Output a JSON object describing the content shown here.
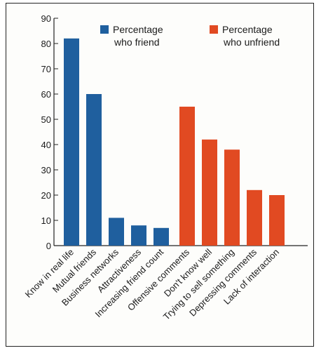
{
  "chart_data": {
    "type": "bar",
    "ylim": [
      0,
      90
    ],
    "yticks": [
      0,
      10,
      20,
      30,
      40,
      50,
      60,
      70,
      80,
      90
    ],
    "grid": false,
    "series": [
      {
        "name": "Percentage who friend",
        "legend_lines": [
          "Percentage",
          "who friend"
        ],
        "color": "#1f5f9e",
        "categories": [
          "Know in real life",
          "Mutual friends",
          "Business networks",
          "Attractiveness",
          "Increasing friend count"
        ],
        "values": [
          82,
          60,
          11,
          8,
          7
        ]
      },
      {
        "name": "Percentage who unfriend",
        "legend_lines": [
          "Percentage",
          "who unfriend"
        ],
        "color": "#e14a22",
        "categories": [
          "Offensive comments",
          "Don't know well",
          "Trying to sell something",
          "Depressing comments",
          "Lack of interaction"
        ],
        "values": [
          55,
          42,
          38,
          22,
          20
        ]
      }
    ],
    "legend_position": "top"
  }
}
